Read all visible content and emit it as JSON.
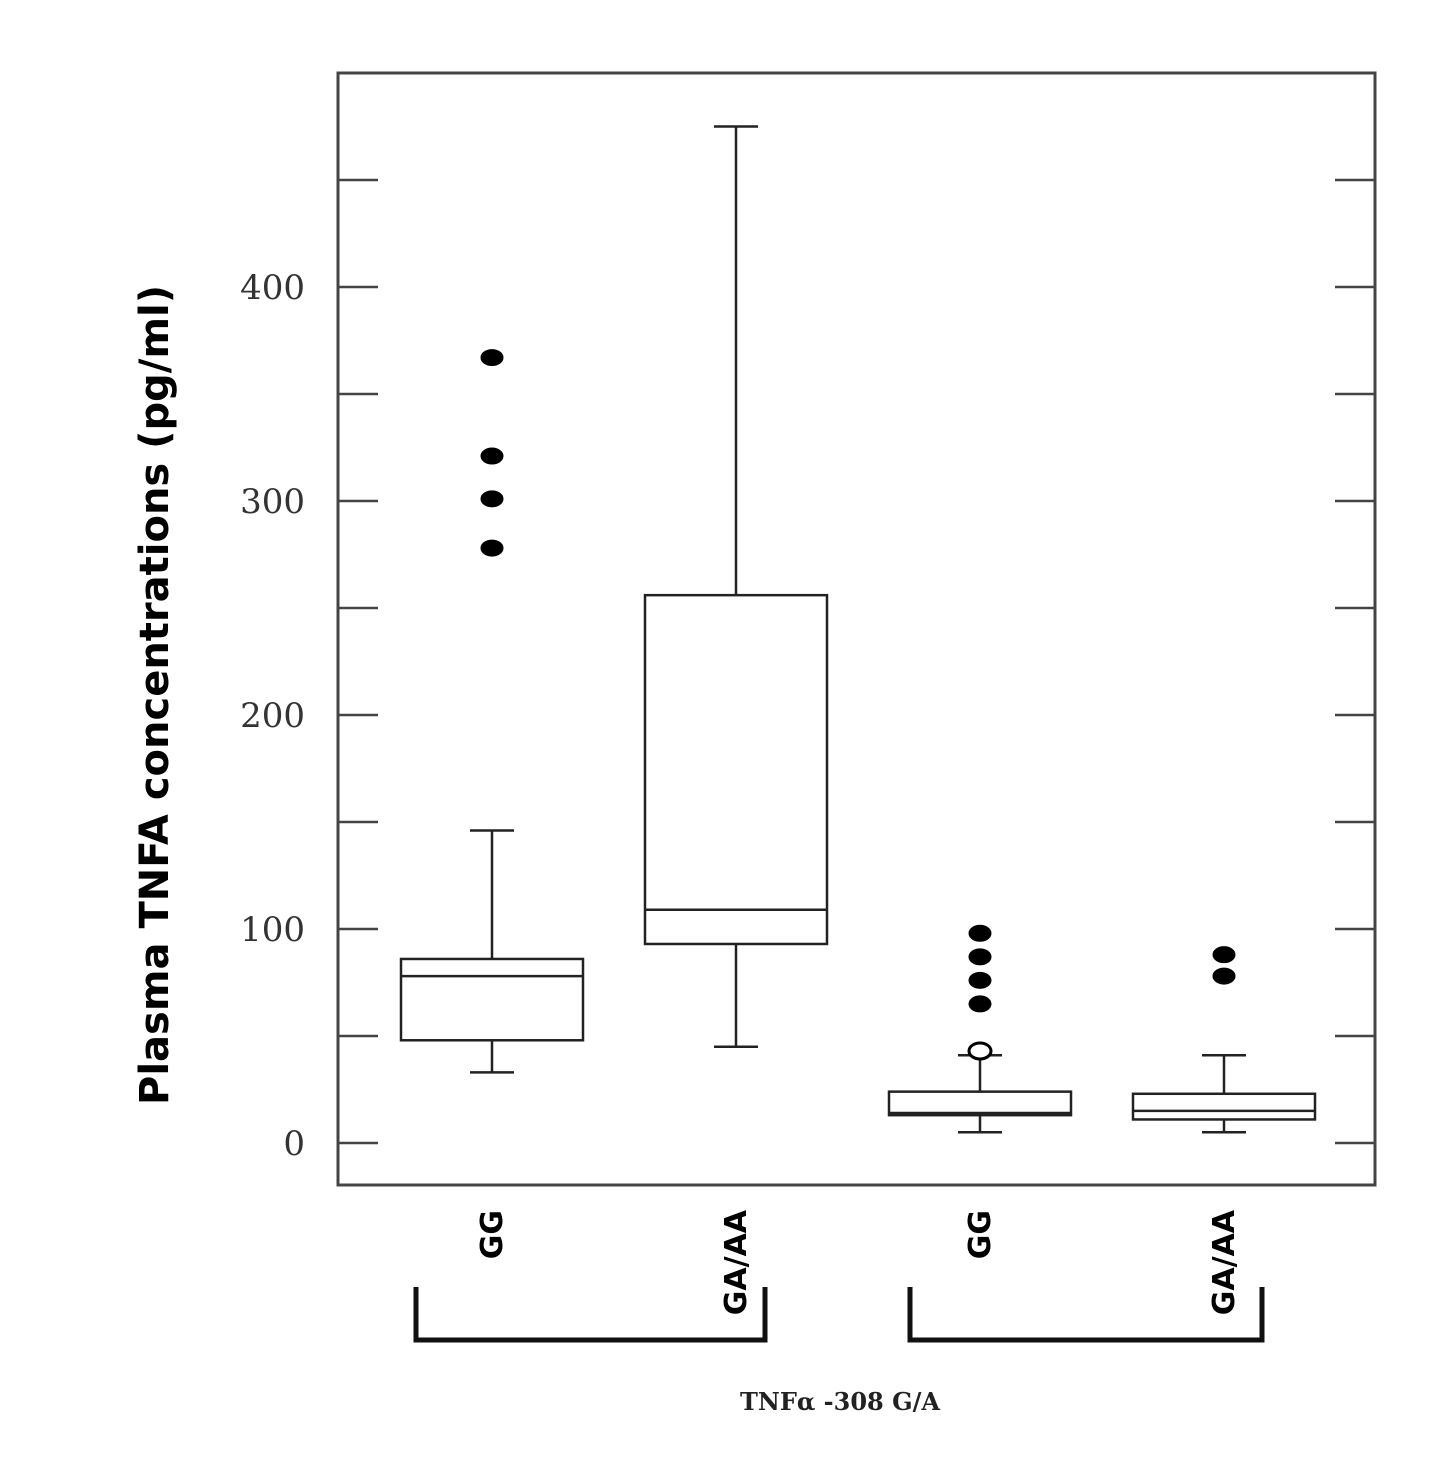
{
  "chart_data": {
    "type": "box",
    "ylabel": "Plasma TNFA concentrations (pg/ml)",
    "xlabel": "TNFα -308 G/A",
    "ylim": [
      -20,
      500
    ],
    "yticks_major": [
      0,
      100,
      200,
      300,
      400
    ],
    "yticks_minor": [
      50,
      150,
      250,
      350,
      450
    ],
    "grid": false,
    "categories": [
      "GG",
      "GA/AA",
      "GG",
      "GA/AA"
    ],
    "groups": [
      {
        "categories": [
          0,
          1
        ]
      },
      {
        "categories": [
          2,
          3
        ]
      }
    ],
    "boxes": [
      {
        "category": "GG",
        "whisker_low": 33,
        "q1": 48,
        "median": 78,
        "q3": 86,
        "whisker_high": 146,
        "outliers": [
          278,
          301,
          321,
          367
        ]
      },
      {
        "category": "GA/AA",
        "whisker_low": 45,
        "q1": 93,
        "median": 109,
        "q3": 256,
        "whisker_high": 475,
        "outliers": []
      },
      {
        "category": "GG",
        "whisker_low": 5,
        "q1": 13,
        "median": 14,
        "q3": 24,
        "whisker_high": 41,
        "outliers": [
          43,
          65,
          76,
          87,
          98
        ]
      },
      {
        "category": "GA/AA",
        "whisker_low": 5,
        "q1": 11,
        "median": 15,
        "q3": 23,
        "whisker_high": 41,
        "outliers": [
          78,
          88
        ]
      }
    ],
    "outlier_styles": {
      "2": {
        "43": "open"
      }
    },
    "colors": {
      "line": "#222222",
      "outlier": "#000000"
    }
  }
}
